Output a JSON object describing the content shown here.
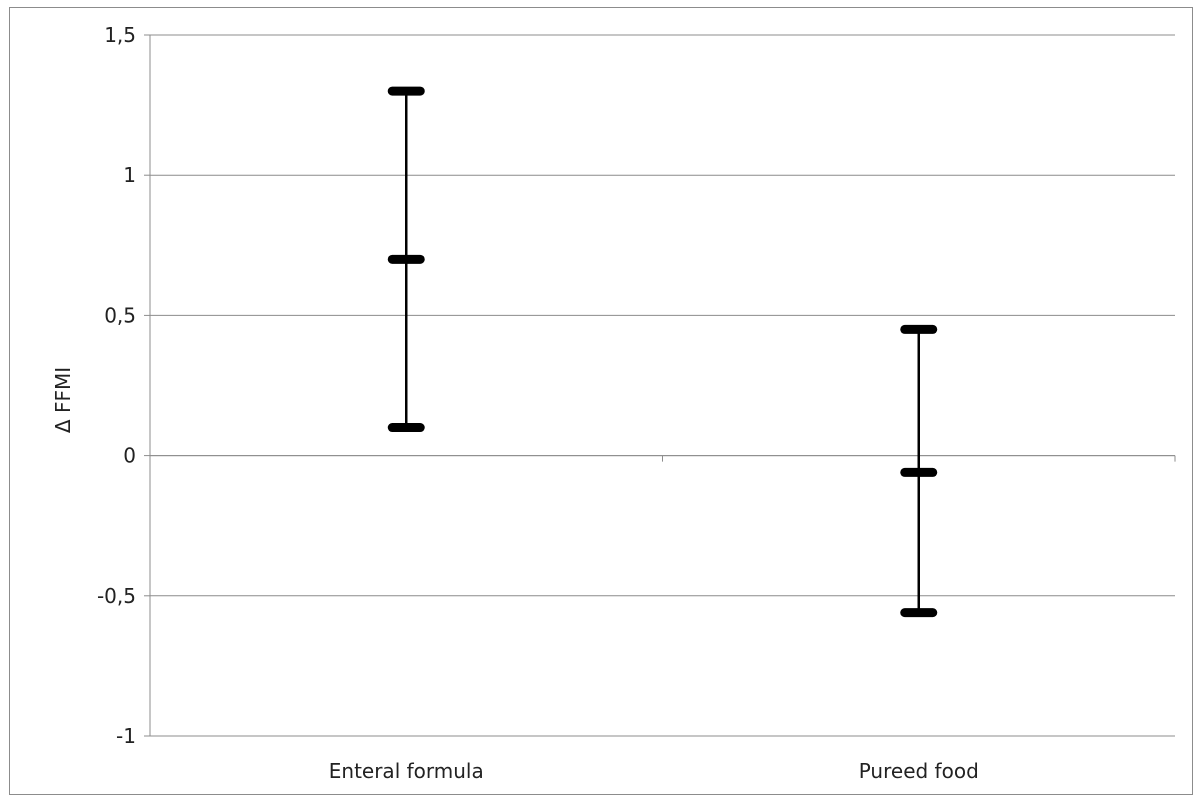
{
  "chart_data": {
    "type": "scatter",
    "title": "",
    "xlabel": "",
    "ylabel": "Δ FFMI",
    "categories": [
      "Enteral formula",
      "Pureed food"
    ],
    "series": [
      {
        "values": [
          {
            "category": "Enteral formula",
            "mean": 0.7,
            "low": 0.1,
            "high": 1.3
          },
          {
            "category": "Pureed food",
            "mean": -0.06,
            "low": -0.56,
            "high": 0.45
          }
        ]
      }
    ],
    "ylim": [
      -1,
      1.5
    ],
    "yticks": [
      1.5,
      1,
      0.5,
      0,
      -0.5,
      -1
    ],
    "ytick_labels": [
      "1,5",
      "1",
      "0,5",
      "0",
      "-0,5",
      "-1"
    ],
    "grid": true,
    "legend": "none",
    "colors": {
      "marker": "#000000",
      "grid": "#8c8c8c"
    }
  }
}
